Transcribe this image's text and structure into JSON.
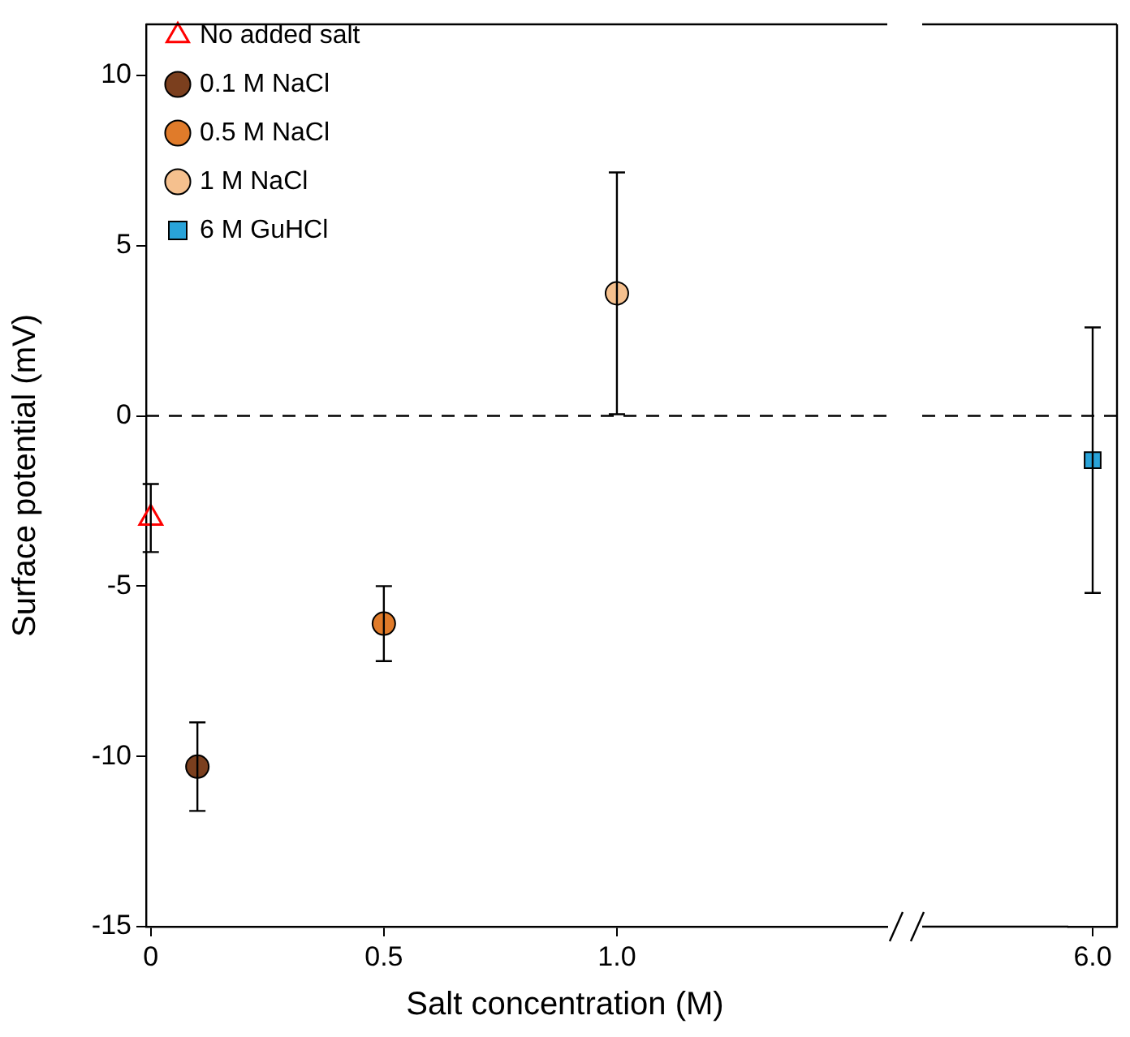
{
  "chart_data": [
    {
      "type": "scatter",
      "xlabel": "Salt concentration (M)",
      "ylabel": "Surface potential (mV)",
      "xlim": [
        -0.01,
        1.58
      ],
      "xticks": [
        0,
        0.5,
        {
          "value": 1,
          "label": "1.0"
        }
      ],
      "ylim": [
        -15,
        11.5
      ],
      "yticks": [
        -15,
        -10,
        -5,
        0,
        5,
        10
      ],
      "grid": false,
      "legend": "top left",
      "ref_lines": [
        {
          "axis": "y",
          "value": 0,
          "line_style": "dashed",
          "color": "#000000"
        }
      ],
      "series": [
        {
          "name": "No added salt",
          "color": "#ff0000",
          "marker": "triangle",
          "x": [
            0
          ],
          "values": [
            -3.0
          ],
          "errors": [
            1.0
          ]
        },
        {
          "name": "0.1 M NaCl",
          "color": "#7b3f1e",
          "marker": "circle",
          "x": [
            0.1
          ],
          "values": [
            -10.3
          ],
          "errors": [
            1.3
          ]
        },
        {
          "name": "0.5 M NaCl",
          "color": "#e07b2a",
          "marker": "circle",
          "x": [
            0.5
          ],
          "values": [
            -6.1
          ],
          "errors": [
            1.1
          ]
        },
        {
          "name": "1 M NaCl",
          "color": "#f5c08e",
          "marker": "circle",
          "x": [
            1.0
          ],
          "values": [
            3.6
          ],
          "errors": [
            3.55
          ]
        },
        {
          "name": "6 M GuHCl",
          "color": "#29a3d9",
          "marker": "square"
        }
      ]
    },
    {
      "type": "scatter",
      "categories": [
        "6.0"
      ],
      "ylim": [
        -15,
        11.5
      ],
      "yticks": [
        -15,
        -10,
        -5,
        0,
        5,
        10
      ],
      "grid": false,
      "tick_labels": "x",
      "ref_lines": [
        {
          "axis": "y",
          "value": 0,
          "line_style": "dashed",
          "color": "#000000"
        }
      ],
      "series": [
        {
          "color": "#29a3d9",
          "marker": "square",
          "x": [
            "6.0"
          ],
          "values": [
            -1.3
          ],
          "errors": [
            3.9
          ]
        }
      ]
    }
  ]
}
